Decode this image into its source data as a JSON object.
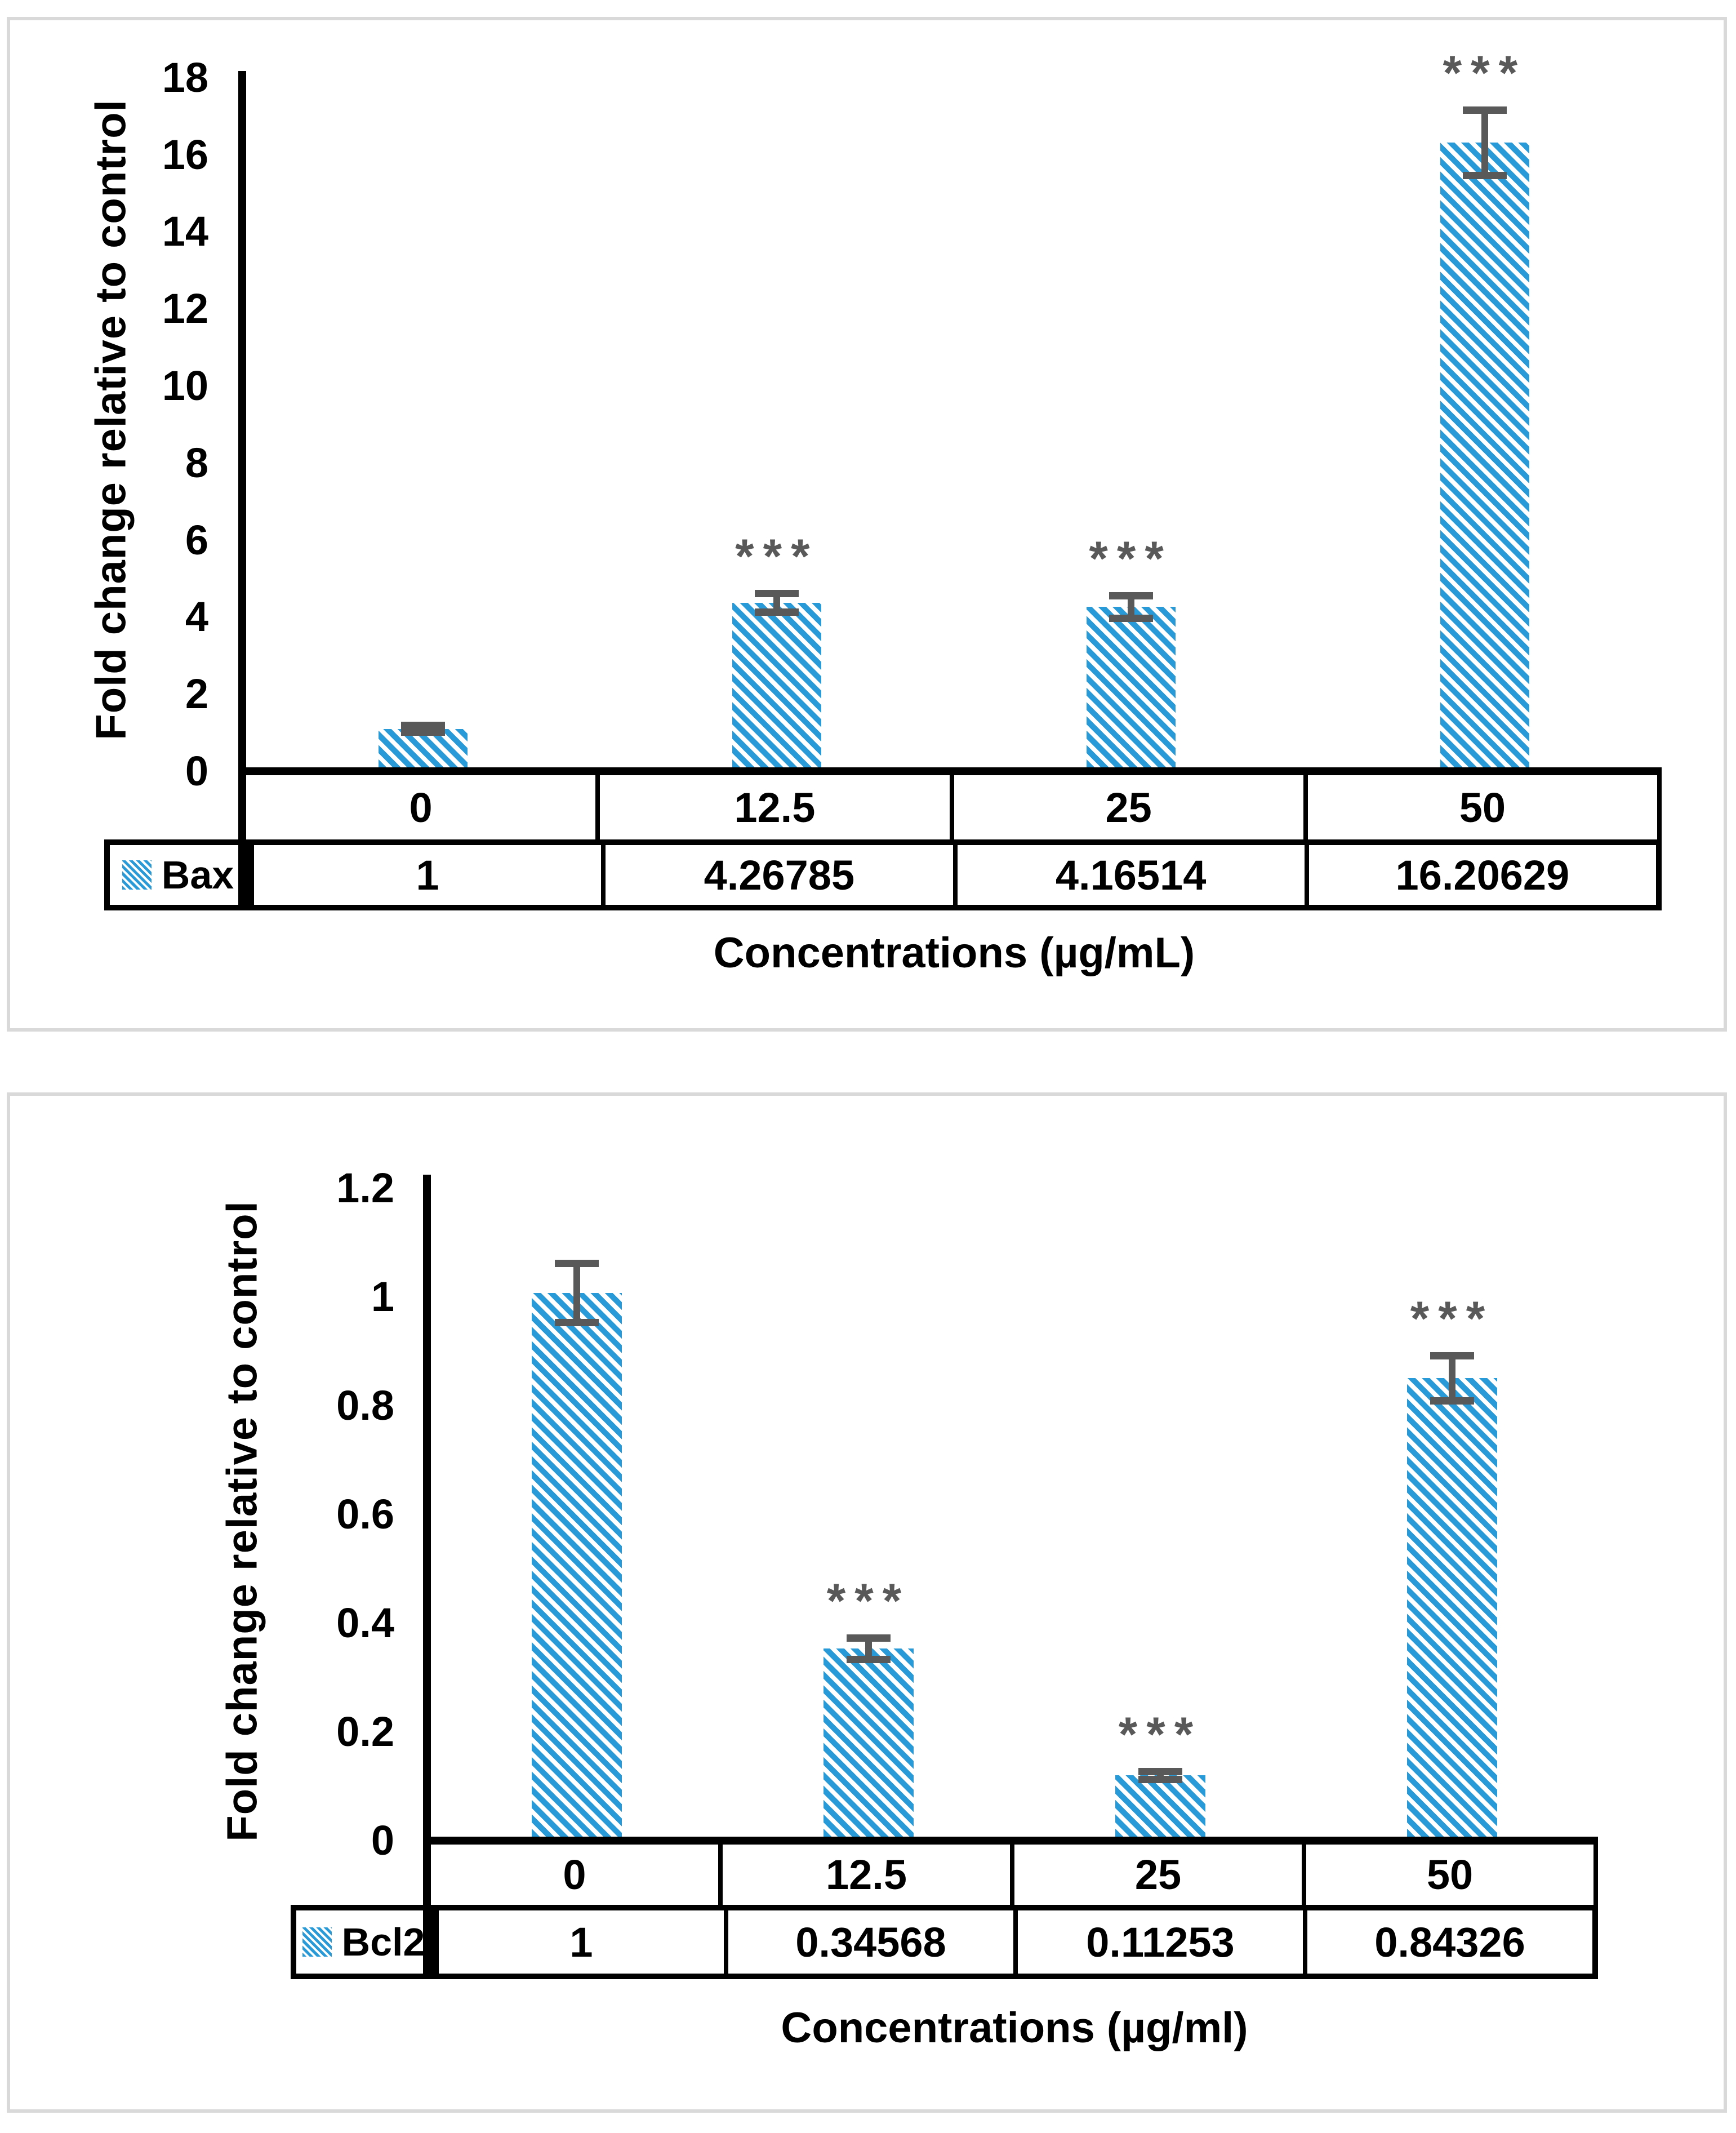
{
  "figure": {
    "description": "Two qPCR bar charts: fold change of Bax and Bcl2 relative to control at increasing concentrations",
    "panels": [
      "Bax panel",
      "Bcl2 panel"
    ]
  },
  "colors": {
    "bar_fill": "#299AD8",
    "bar_background": "#FFFFFF",
    "error_bar": "#595959",
    "significance": "#595959",
    "axis": "#000000",
    "table_border": "#000000",
    "panel_border": "#D9D9D9",
    "text": "#000000",
    "background": "#FFFFFF"
  },
  "significance_marker": "***",
  "chart_data": [
    {
      "type": "bar",
      "series_label": "Bax",
      "title": "",
      "xlabel": "Concentrations (µg/mL)",
      "ylabel": "Fold change relative to control",
      "categories": [
        "0",
        "12.5",
        "25",
        "50"
      ],
      "values": [
        1,
        4.26785,
        4.16514,
        16.20629
      ],
      "value_labels": [
        "1",
        "4.26785",
        "4.16514",
        "16.20629"
      ],
      "errors": [
        0.1,
        0.25,
        0.3,
        0.85
      ],
      "significant": [
        false,
        true,
        true,
        true
      ],
      "y_ticks": [
        "0",
        "2",
        "4",
        "6",
        "8",
        "10",
        "12",
        "14",
        "16",
        "18"
      ],
      "ylim": [
        0,
        18
      ],
      "grid": false,
      "legend_position": "table-left",
      "bar_pattern": "diagonal-stripes"
    },
    {
      "type": "bar",
      "series_label": "Bcl2",
      "title": "",
      "xlabel": "Concentrations (µg/ml)",
      "ylabel": "Fold change relative to control",
      "categories": [
        "0",
        "12.5",
        "25",
        "50"
      ],
      "values": [
        1,
        0.34568,
        0.11253,
        0.84326
      ],
      "value_labels": [
        "1",
        "0.34568",
        "0.11253",
        "0.84326"
      ],
      "errors": [
        0.055,
        0.02,
        0.008,
        0.042
      ],
      "significant": [
        false,
        true,
        true,
        true
      ],
      "y_ticks": [
        "0",
        "0.2",
        "0.4",
        "0.6",
        "0.8",
        "1",
        "1.2"
      ],
      "ylim": [
        0,
        1.2
      ],
      "grid": false,
      "legend_position": "table-left",
      "bar_pattern": "diagonal-stripes"
    }
  ]
}
